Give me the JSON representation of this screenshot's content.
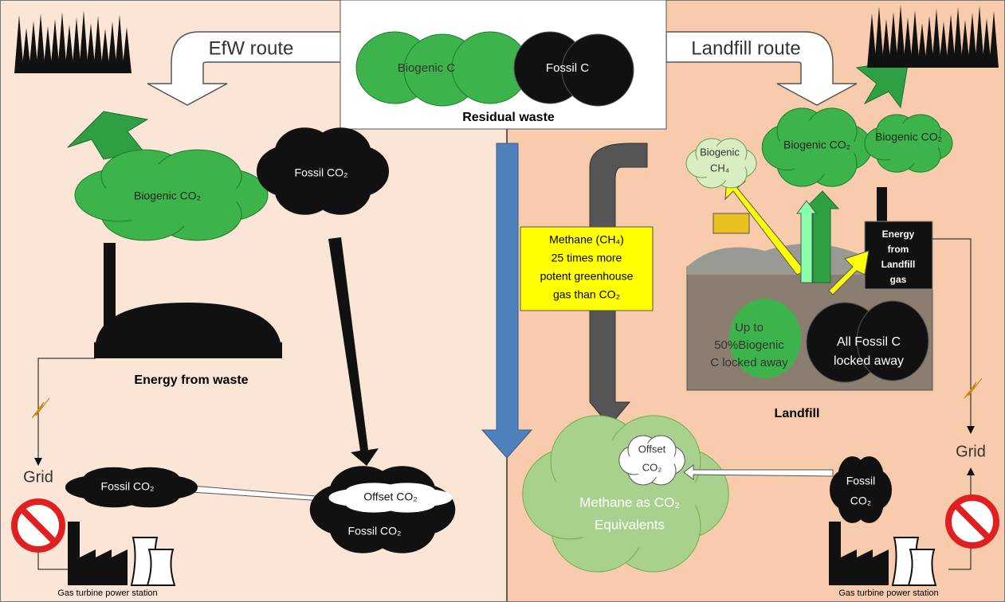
{
  "residual_waste": {
    "bags": [
      "Biogenic C",
      "Fossil C"
    ],
    "label": "Residual waste"
  },
  "efw": {
    "route": "EfW route",
    "biogenic_cloud": "Biogenic CO₂",
    "fossil_cloud": "Fossil CO₂",
    "plant": "Energy from waste",
    "grid": "Grid",
    "grid_cloud": "Fossil CO₂",
    "offset_cloud": [
      "Offset CO₂",
      "Fossil CO₂"
    ],
    "power_station": "Gas turbine power station"
  },
  "methane_note": [
    "Methane (CH₄)",
    "25 times more",
    "potent greenhouse",
    "gas than CO₂"
  ],
  "landfill": {
    "route": "Landfill route",
    "methane_cloud": [
      "Biogenic",
      "CH₄"
    ],
    "biogenic_clouds": [
      "Biogenic CO₂",
      "Biogenic CO₂"
    ],
    "energy_box": [
      "Energy",
      "from",
      "Landfill",
      "gas"
    ],
    "biogenic_bag": [
      "Up to",
      "50%Biogenic",
      "C locked away"
    ],
    "fossil_bag": [
      "All Fossil C",
      "locked away"
    ],
    "label": "Landfill",
    "equivalents_cloud": [
      "Methane as CO₂",
      "Equivalents"
    ],
    "offset_cloud": [
      "Offset",
      "CO₂"
    ],
    "fossil_cloud": [
      "Fossil",
      "CO₂"
    ],
    "grid": "Grid",
    "power_station": "Gas turbine power station"
  }
}
